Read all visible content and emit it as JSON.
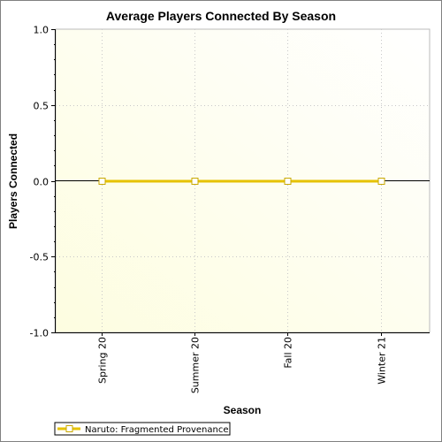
{
  "chart_data": {
    "type": "line",
    "title": "Average Players Connected By Season",
    "xlabel": "Season",
    "ylabel": "Players Connected",
    "categories": [
      "Spring 20",
      "Summer 20",
      "Fall 20",
      "Winter 21"
    ],
    "yticks": [
      "1.0",
      "0.5",
      "0.0",
      "-0.5",
      "-1.0"
    ],
    "ylim": [
      -1.0,
      1.0
    ],
    "grid": true,
    "legend_position": "bottom-left",
    "background_color": "#ffffe6",
    "series": [
      {
        "name": "Naruto: Fragmented Provenance",
        "values": [
          0,
          0,
          0,
          0
        ],
        "color": "#e6c200"
      }
    ]
  }
}
